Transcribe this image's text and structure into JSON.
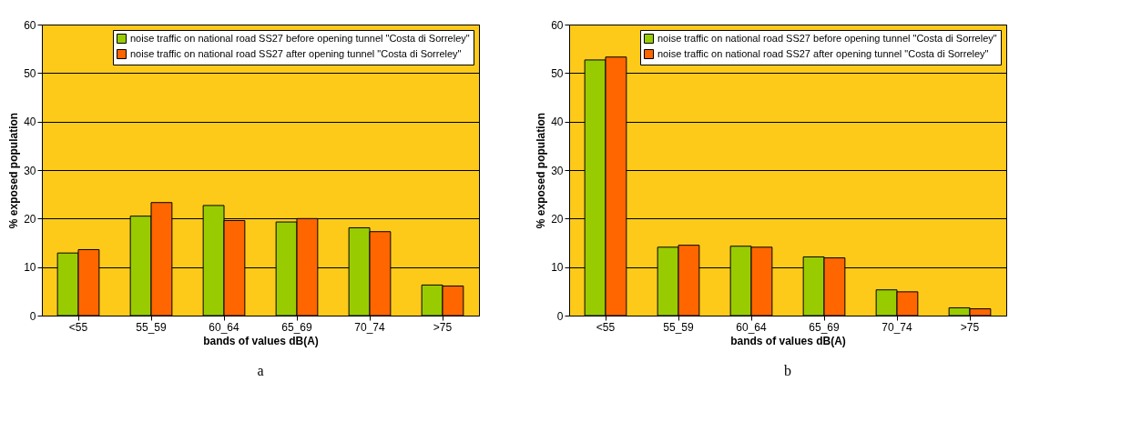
{
  "chart_data": [
    {
      "type": "bar",
      "xlabel": "bands of values dB(A)",
      "ylabel": "% exposed population",
      "categories": [
        "<55",
        "55_59",
        "60_64",
        "65_69",
        "70_74",
        ">75"
      ],
      "series": [
        {
          "name": "noise traffic on national road SS27 before opening tunnel \"Costa di Sorreley\"",
          "color": "#99cc00",
          "values": [
            12.9,
            20.5,
            22.7,
            19.3,
            18.1,
            6.3
          ]
        },
        {
          "name": "noise traffic on national road SS27 after opening tunnel \"Costa di Sorreley\"",
          "color": "#ff6600",
          "values": [
            13.6,
            23.3,
            19.6,
            20.0,
            17.3,
            6.1
          ]
        }
      ],
      "ylim": [
        0,
        60
      ],
      "yticks": [
        0,
        10,
        20,
        30,
        40,
        50,
        60
      ],
      "grid": "y",
      "legend": "top right",
      "annotations": [
        "a"
      ]
    },
    {
      "type": "bar",
      "xlabel": "bands of values dB(A)",
      "ylabel": "% exposed population",
      "categories": [
        "<55",
        "55_59",
        "60_64",
        "65_69",
        "70_74",
        ">75"
      ],
      "series": [
        {
          "name": "noise traffic on national road SS27 before opening tunnel \"Costa di Sorreley\"",
          "color": "#99cc00",
          "values": [
            52.7,
            14.1,
            14.3,
            12.1,
            5.3,
            1.6
          ]
        },
        {
          "name": "noise traffic on national road SS27 after opening tunnel \"Costa di Sorreley\"",
          "color": "#ff6600",
          "values": [
            53.3,
            14.5,
            14.1,
            11.9,
            4.9,
            1.4
          ]
        }
      ],
      "ylim": [
        0,
        60
      ],
      "yticks": [
        0,
        10,
        20,
        30,
        40,
        50,
        60
      ],
      "grid": "y",
      "legend": "top right",
      "annotations": [
        "b"
      ]
    }
  ]
}
